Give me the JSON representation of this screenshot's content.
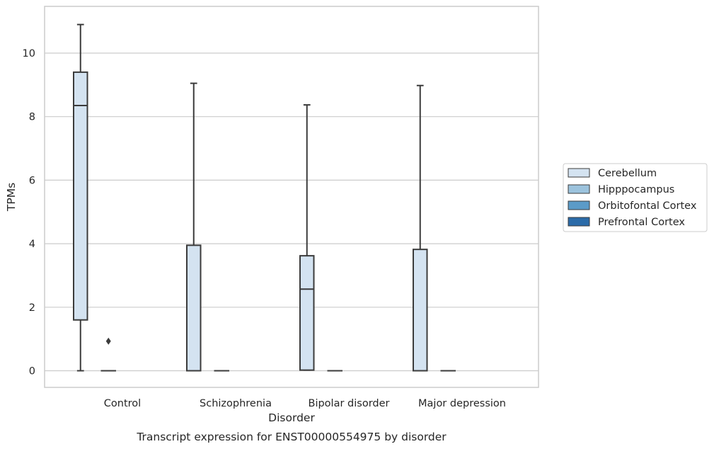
{
  "chart_data": {
    "type": "box",
    "caption": "Transcript expression for ENST00000554975 by disorder",
    "xlabel": "Disorder",
    "ylabel": "TPMs",
    "ylim": [
      -0.5,
      11.5
    ],
    "yticks": [
      0,
      2,
      4,
      6,
      8,
      10
    ],
    "grid": "horizontal",
    "legend_position": "right",
    "categories": [
      "Control",
      "Schizophrenia",
      "Bipolar disorder",
      "Major depression"
    ],
    "series": [
      {
        "name": "Cerebellum",
        "color": "#d4e3f1",
        "boxes": [
          {
            "whislo": 0.0,
            "q1": 1.6,
            "med": 8.35,
            "q3": 9.4,
            "whishi": 10.9,
            "fliers": []
          },
          {
            "whislo": 0.0,
            "q1": 0.0,
            "med": 0.0,
            "q3": 3.95,
            "whishi": 9.05,
            "fliers": []
          },
          {
            "whislo": 0.02,
            "q1": 0.02,
            "med": 2.57,
            "q3": 3.62,
            "whishi": 8.37,
            "fliers": []
          },
          {
            "whislo": 0.0,
            "q1": 0.0,
            "med": 0.0,
            "q3": 3.82,
            "whishi": 8.98,
            "fliers": []
          }
        ]
      },
      {
        "name": "Hipppocampus",
        "color": "#9cc3dd",
        "boxes": [
          {
            "whislo": 0.0,
            "q1": 0.0,
            "med": 0.0,
            "q3": 0.0,
            "whishi": 0.0,
            "fliers": [
              0.93
            ]
          },
          {
            "whislo": 0.0,
            "q1": 0.0,
            "med": 0.0,
            "q3": 0.0,
            "whishi": 0.0,
            "fliers": []
          },
          {
            "whislo": 0.0,
            "q1": 0.0,
            "med": 0.0,
            "q3": 0.0,
            "whishi": 0.0,
            "fliers": []
          },
          {
            "whislo": 0.0,
            "q1": 0.0,
            "med": 0.0,
            "q3": 0.0,
            "whishi": 0.0,
            "fliers": []
          }
        ]
      },
      {
        "name": "Orbitofontal Cortex",
        "color": "#5b9bc8",
        "boxes": []
      },
      {
        "name": "Prefrontal Cortex",
        "color": "#2b6ba8",
        "boxes": []
      }
    ]
  }
}
